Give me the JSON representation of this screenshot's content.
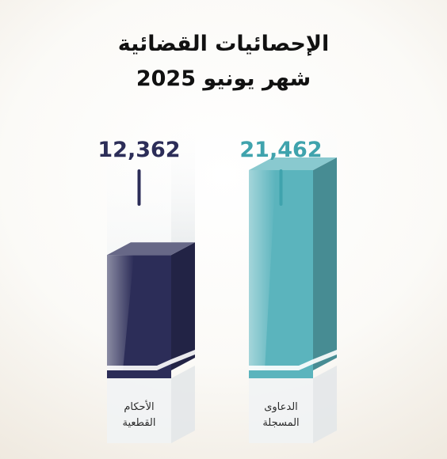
{
  "header": {
    "title_line1": "الإحصائيات القضائية",
    "title_line2": "شهر يونيو 2025"
  },
  "colors": {
    "navy": "#2c2d58",
    "teal": "#5bb4bd",
    "teal_text": "#3fa3ad"
  },
  "chart_data": {
    "type": "bar",
    "categories": [
      "الأحكام القطعية",
      "الدعاوى المسجلة"
    ],
    "series": [
      {
        "values": [
          12362,
          21462
        ]
      }
    ],
    "value_labels": [
      "12,362",
      "21,462"
    ],
    "category_lines": [
      [
        "الأحكام",
        "القطعية"
      ],
      [
        "الدعاوى",
        "المسجلة"
      ]
    ],
    "bar_colors": [
      "#2c2d58",
      "#5bb4bd"
    ],
    "ylim": [
      0,
      28000
    ]
  }
}
